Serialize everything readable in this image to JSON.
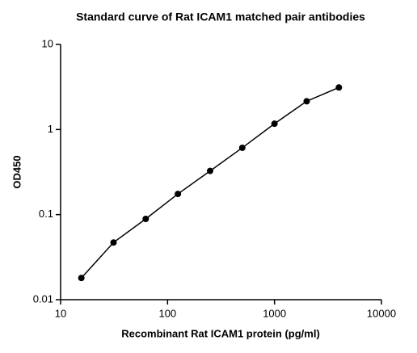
{
  "chart_data": {
    "type": "line",
    "title": "Standard curve of Rat ICAM1 matched pair antibodies",
    "x_label": "Recombinant Rat ICAM1 protein (pg/ml)",
    "y_label": "OD450",
    "x": [
      15.625,
      31.25,
      62.5,
      125,
      250,
      500,
      1000,
      2000,
      4000
    ],
    "series": [
      {
        "color": "#000000",
        "values": [
          0.018,
          0.047,
          0.089,
          0.175,
          0.326,
          0.61,
          1.17,
          2.15,
          3.12
        ]
      }
    ],
    "x_scale": "log",
    "y_scale": "log",
    "xlim": [
      10,
      10000
    ],
    "xticks": [
      10,
      100,
      1000,
      10000
    ],
    "ylim": [
      0.01,
      10
    ],
    "yticks": [
      0.01,
      0.1,
      1,
      10
    ],
    "markers": true,
    "grid": false
  }
}
